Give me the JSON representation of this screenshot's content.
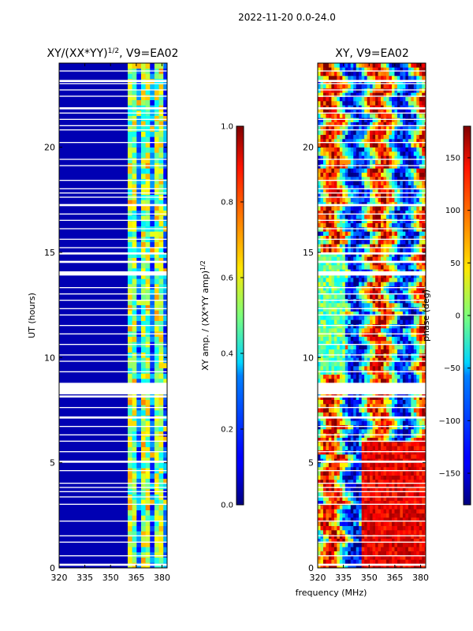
{
  "suptitle": "2022-11-20 0.0-24.0",
  "chart_data": [
    {
      "type": "heatmap",
      "title": "XY/(XX*YY)^{1/2}, V9=EA02",
      "title_main": "XY/(XX*YY)",
      "title_exp": "1/2",
      "title_tail": ", V9=EA02",
      "xlabel": "",
      "ylabel": "UT (hours)",
      "xlim": [
        320,
        383
      ],
      "ylim": [
        0,
        24
      ],
      "xticks": [
        320,
        335,
        350,
        365,
        380
      ],
      "yticks": [
        0,
        5,
        10,
        15,
        20
      ],
      "colorbar": {
        "label": "XY amp. / (XX*YY amp)^{1/2}",
        "label_main": "XY amp. / (XX*YY amp)",
        "label_exp": "1/2",
        "min": 0.0,
        "max": 1.0,
        "ticks": [
          0.0,
          0.2,
          0.4,
          0.6,
          0.8,
          1.0
        ],
        "tick_labels": [
          "0.0",
          "0.2",
          "0.4",
          "0.6",
          "0.8",
          "1.0"
        ],
        "colormap": "jet"
      },
      "description_values": {
        "background_band_MHz": [
          320,
          360
        ],
        "background_value": 0.05,
        "active_band_MHz": [
          360,
          383
        ],
        "active_value_range": [
          0.3,
          0.7
        ]
      }
    },
    {
      "type": "heatmap",
      "title": "XY, V9=EA02",
      "xlabel": "frequency (MHz)",
      "ylabel": "",
      "xlim": [
        320,
        383
      ],
      "ylim": [
        0,
        24
      ],
      "xticks": [
        320,
        335,
        350,
        365,
        380
      ],
      "yticks": [
        0,
        5,
        10,
        15,
        20
      ],
      "colorbar": {
        "label": "phase (deg)",
        "min": -180,
        "max": 180,
        "ticks": [
          -150,
          -100,
          -50,
          0,
          50,
          100,
          150
        ],
        "tick_labels": [
          "−150",
          "−100",
          "−50",
          "0",
          "50",
          "100",
          "150"
        ],
        "colormap": "jet"
      }
    }
  ],
  "flagged_gaps_hours": [
    [
      0.1,
      0.2
    ],
    [
      0.55,
      0.6
    ],
    [
      1.2,
      1.25
    ],
    [
      1.5,
      1.55
    ],
    [
      2.2,
      2.25
    ],
    [
      3.0,
      3.05
    ],
    [
      3.35,
      3.4
    ],
    [
      3.6,
      3.65
    ],
    [
      3.8,
      3.85
    ],
    [
      4.0,
      4.05
    ],
    [
      4.6,
      4.65
    ],
    [
      5.0,
      5.1
    ],
    [
      5.5,
      5.55
    ],
    [
      6.0,
      6.05
    ],
    [
      6.3,
      6.35
    ],
    [
      6.7,
      6.75
    ],
    [
      7.1,
      7.2
    ],
    [
      7.6,
      7.65
    ],
    [
      8.1,
      8.2
    ],
    [
      8.25,
      8.8
    ],
    [
      9.3,
      9.35
    ],
    [
      9.8,
      9.85
    ],
    [
      10.1,
      10.15
    ],
    [
      10.6,
      10.65
    ],
    [
      11.1,
      11.15
    ],
    [
      11.5,
      11.55
    ],
    [
      12.0,
      12.05
    ],
    [
      12.3,
      12.35
    ],
    [
      12.7,
      12.75
    ],
    [
      13.0,
      13.05
    ],
    [
      13.3,
      13.35
    ],
    [
      13.9,
      14.1
    ],
    [
      14.5,
      14.6
    ],
    [
      14.9,
      15.0
    ],
    [
      15.2,
      15.25
    ],
    [
      15.6,
      15.65
    ],
    [
      16.1,
      16.15
    ],
    [
      16.5,
      16.55
    ],
    [
      16.8,
      16.85
    ],
    [
      17.2,
      17.3
    ],
    [
      17.6,
      17.65
    ],
    [
      17.8,
      17.85
    ],
    [
      18.0,
      18.05
    ],
    [
      18.4,
      18.45
    ],
    [
      19.1,
      19.15
    ],
    [
      19.4,
      19.45
    ],
    [
      20.2,
      20.25
    ],
    [
      20.8,
      20.85
    ],
    [
      21.0,
      21.05
    ],
    [
      21.3,
      21.35
    ],
    [
      21.6,
      21.65
    ],
    [
      21.8,
      21.9
    ],
    [
      22.4,
      22.45
    ],
    [
      22.7,
      22.75
    ],
    [
      23.0,
      23.05
    ],
    [
      23.1,
      23.2
    ],
    [
      23.6,
      23.65
    ]
  ]
}
